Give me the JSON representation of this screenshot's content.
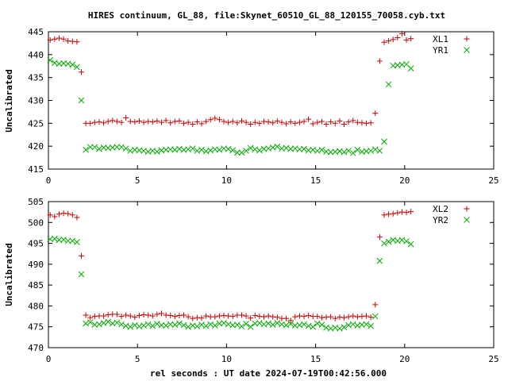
{
  "title": "HIRES continuum, GL_88, file:Skynet_60510_GL_88_120155_70058.cyb.txt",
  "xlabel": "rel seconds : UT date 2024-07-19T00:42:56.000",
  "colors": {
    "series_a": "#cc0000",
    "series_b": "#00aa00",
    "axes": "#000000"
  },
  "chart_data": [
    {
      "type": "scatter",
      "ylabel": "Uncalibrated",
      "xlim": [
        0,
        25
      ],
      "ylim": [
        415,
        445
      ],
      "xticks": [
        0,
        5,
        10,
        15,
        20,
        25
      ],
      "yticks": [
        415,
        420,
        425,
        430,
        435,
        440,
        445
      ],
      "grid": false,
      "legend": "top-right",
      "series": [
        {
          "name": "XL1",
          "marker": "plus",
          "x": [
            0.1,
            0.35,
            0.6,
            0.85,
            1.1,
            1.35,
            1.6,
            1.85,
            2.1,
            2.35,
            2.6,
            2.85,
            3.1,
            3.35,
            3.6,
            3.85,
            4.1,
            4.35,
            4.6,
            4.85,
            5.1,
            5.35,
            5.6,
            5.85,
            6.1,
            6.35,
            6.6,
            6.85,
            7.1,
            7.35,
            7.6,
            7.85,
            8.1,
            8.35,
            8.6,
            8.85,
            9.1,
            9.35,
            9.6,
            9.85,
            10.1,
            10.35,
            10.6,
            10.85,
            11.1,
            11.35,
            11.6,
            11.85,
            12.1,
            12.35,
            12.6,
            12.85,
            13.1,
            13.35,
            13.6,
            13.85,
            14.1,
            14.35,
            14.6,
            14.85,
            15.1,
            15.35,
            15.6,
            15.85,
            16.1,
            16.35,
            16.6,
            16.85,
            17.1,
            17.35,
            17.6,
            17.85,
            18.1,
            18.35,
            18.6,
            18.85,
            19.1,
            19.35,
            19.6,
            19.85,
            20.1,
            20.35
          ],
          "y": [
            443.2,
            443.4,
            443.6,
            443.4,
            443.0,
            442.9,
            442.8,
            436.2,
            425.0,
            425.0,
            425.2,
            425.3,
            425.1,
            425.4,
            425.6,
            425.4,
            425.2,
            426.2,
            425.4,
            425.3,
            425.5,
            425.2,
            425.4,
            425.3,
            425.5,
            425.2,
            425.6,
            425.1,
            425.4,
            425.5,
            425.0,
            425.2,
            424.8,
            425.3,
            424.9,
            425.4,
            425.8,
            426.1,
            425.8,
            425.4,
            425.2,
            425.4,
            425.1,
            425.5,
            425.2,
            424.8,
            425.2,
            425.0,
            425.4,
            425.3,
            425.1,
            425.5,
            425.2,
            424.9,
            425.3,
            425.0,
            425.2,
            425.4,
            425.9,
            424.9,
            425.2,
            425.4,
            424.8,
            425.3,
            425.0,
            425.5,
            424.8,
            425.3,
            425.6,
            425.2,
            425.1,
            425.0,
            425.1,
            427.2,
            438.6,
            442.7,
            443.0,
            443.3,
            443.7,
            444.6,
            443.2,
            443.5
          ]
        },
        {
          "name": "YR1",
          "marker": "cross",
          "x": [
            0.1,
            0.35,
            0.6,
            0.85,
            1.1,
            1.35,
            1.6,
            1.85,
            2.1,
            2.35,
            2.6,
            2.85,
            3.1,
            3.35,
            3.6,
            3.85,
            4.1,
            4.35,
            4.6,
            4.85,
            5.1,
            5.35,
            5.6,
            5.85,
            6.1,
            6.35,
            6.6,
            6.85,
            7.1,
            7.35,
            7.6,
            7.85,
            8.1,
            8.35,
            8.6,
            8.85,
            9.1,
            9.35,
            9.6,
            9.85,
            10.1,
            10.35,
            10.6,
            10.85,
            11.1,
            11.35,
            11.6,
            11.85,
            12.1,
            12.35,
            12.6,
            12.85,
            13.1,
            13.35,
            13.6,
            13.85,
            14.1,
            14.35,
            14.6,
            14.85,
            15.1,
            15.35,
            15.6,
            15.85,
            16.1,
            16.35,
            16.6,
            16.85,
            17.1,
            17.35,
            17.6,
            17.85,
            18.1,
            18.35,
            18.6,
            18.85,
            19.1,
            19.35,
            19.6,
            19.85,
            20.1,
            20.35
          ],
          "y": [
            438.8,
            438.2,
            438.0,
            438.1,
            438.0,
            437.8,
            437.3,
            430.0,
            419.2,
            419.8,
            419.8,
            419.4,
            419.7,
            419.6,
            419.7,
            419.8,
            419.8,
            419.5,
            419.0,
            419.2,
            419.1,
            419.0,
            418.8,
            419.0,
            418.8,
            419.1,
            419.2,
            419.3,
            419.2,
            419.4,
            419.2,
            419.3,
            419.5,
            419.0,
            419.2,
            418.9,
            419.1,
            419.3,
            419.2,
            419.5,
            419.4,
            419.1,
            418.6,
            418.6,
            419.0,
            419.6,
            419.3,
            419.1,
            419.4,
            419.5,
            419.7,
            419.9,
            419.5,
            419.6,
            419.4,
            419.5,
            419.3,
            419.4,
            419.1,
            419.2,
            419.0,
            419.2,
            418.8,
            418.7,
            418.8,
            418.9,
            418.7,
            419.0,
            418.5,
            419.2,
            418.8,
            418.9,
            419.0,
            419.3,
            419.0,
            421.0,
            433.5,
            437.6,
            437.7,
            437.8,
            437.9,
            437.0
          ]
        }
      ]
    },
    {
      "type": "scatter",
      "ylabel": "Uncalibrated",
      "xlim": [
        0,
        25
      ],
      "ylim": [
        470,
        505
      ],
      "xticks": [
        0,
        5,
        10,
        15,
        20,
        25
      ],
      "yticks": [
        470,
        475,
        480,
        485,
        490,
        495,
        500,
        505
      ],
      "grid": false,
      "legend": "top-right",
      "series": [
        {
          "name": "XL2",
          "marker": "plus",
          "x": [
            0.1,
            0.35,
            0.6,
            0.85,
            1.1,
            1.35,
            1.6,
            1.85,
            2.1,
            2.35,
            2.6,
            2.85,
            3.1,
            3.35,
            3.6,
            3.85,
            4.1,
            4.35,
            4.6,
            4.85,
            5.1,
            5.35,
            5.6,
            5.85,
            6.1,
            6.35,
            6.6,
            6.85,
            7.1,
            7.35,
            7.6,
            7.85,
            8.1,
            8.35,
            8.6,
            8.85,
            9.1,
            9.35,
            9.6,
            9.85,
            10.1,
            10.35,
            10.6,
            10.85,
            11.1,
            11.35,
            11.6,
            11.85,
            12.1,
            12.35,
            12.6,
            12.85,
            13.1,
            13.35,
            13.6,
            13.85,
            14.1,
            14.35,
            14.6,
            14.85,
            15.1,
            15.35,
            15.6,
            15.85,
            16.1,
            16.35,
            16.6,
            16.85,
            17.1,
            17.35,
            17.6,
            17.85,
            18.1,
            18.35,
            18.6,
            18.85,
            19.1,
            19.35,
            19.6,
            19.85,
            20.1,
            20.35
          ],
          "y": [
            501.8,
            501.4,
            502.0,
            502.2,
            502.1,
            501.8,
            501.2,
            492.0,
            477.8,
            477.2,
            477.5,
            477.6,
            477.6,
            477.9,
            478.0,
            478.0,
            477.5,
            477.8,
            477.6,
            477.3,
            477.7,
            477.9,
            477.8,
            477.6,
            478.0,
            478.2,
            477.8,
            477.7,
            477.5,
            477.7,
            477.8,
            477.4,
            477.0,
            477.2,
            477.1,
            477.6,
            477.4,
            477.4,
            477.6,
            477.7,
            477.6,
            477.5,
            477.8,
            477.8,
            477.6,
            477.1,
            477.7,
            477.5,
            477.4,
            477.6,
            477.4,
            477.3,
            477.0,
            477.0,
            476.5,
            477.4,
            477.6,
            477.5,
            477.7,
            477.5,
            477.5,
            477.2,
            477.3,
            477.4,
            477.0,
            477.3,
            477.2,
            477.4,
            477.6,
            477.4,
            477.5,
            477.6,
            477.3,
            480.3,
            496.5,
            501.8,
            502.0,
            502.1,
            502.3,
            502.5,
            502.4,
            502.6
          ]
        },
        {
          "name": "YR2",
          "marker": "cross",
          "x": [
            0.1,
            0.35,
            0.6,
            0.85,
            1.1,
            1.35,
            1.6,
            1.85,
            2.1,
            2.35,
            2.6,
            2.85,
            3.1,
            3.35,
            3.6,
            3.85,
            4.1,
            4.35,
            4.6,
            4.85,
            5.1,
            5.35,
            5.6,
            5.85,
            6.1,
            6.35,
            6.6,
            6.85,
            7.1,
            7.35,
            7.6,
            7.85,
            8.1,
            8.35,
            8.6,
            8.85,
            9.1,
            9.35,
            9.6,
            9.85,
            10.1,
            10.35,
            10.6,
            10.85,
            11.1,
            11.35,
            11.6,
            11.85,
            12.1,
            12.35,
            12.6,
            12.85,
            13.1,
            13.35,
            13.6,
            13.85,
            14.1,
            14.35,
            14.6,
            14.85,
            15.1,
            15.35,
            15.6,
            15.85,
            16.1,
            16.35,
            16.6,
            16.85,
            17.1,
            17.35,
            17.6,
            17.85,
            18.1,
            18.35,
            18.6,
            18.85,
            19.1,
            19.35,
            19.6,
            19.85,
            20.1,
            20.35
          ],
          "y": [
            496.0,
            496.1,
            495.8,
            495.9,
            495.6,
            495.6,
            495.3,
            487.6,
            475.8,
            476.1,
            475.5,
            475.6,
            475.9,
            476.2,
            475.8,
            476.0,
            475.6,
            475.2,
            475.0,
            475.4,
            475.1,
            475.3,
            475.6,
            475.2,
            475.7,
            475.4,
            475.3,
            475.6,
            475.5,
            475.8,
            475.4,
            475.0,
            475.3,
            475.1,
            475.5,
            475.2,
            475.6,
            475.3,
            475.8,
            475.9,
            475.6,
            475.4,
            475.5,
            475.1,
            475.7,
            475.0,
            475.8,
            475.9,
            475.6,
            475.8,
            475.5,
            475.9,
            475.6,
            475.4,
            475.7,
            475.3,
            475.4,
            475.6,
            475.2,
            475.0,
            475.8,
            475.5,
            474.8,
            474.6,
            474.8,
            474.6,
            474.9,
            475.4,
            475.6,
            475.3,
            475.5,
            475.6,
            475.2,
            477.5,
            490.8,
            495.0,
            495.4,
            495.8,
            495.6,
            495.8,
            495.5,
            494.8
          ]
        }
      ]
    }
  ]
}
